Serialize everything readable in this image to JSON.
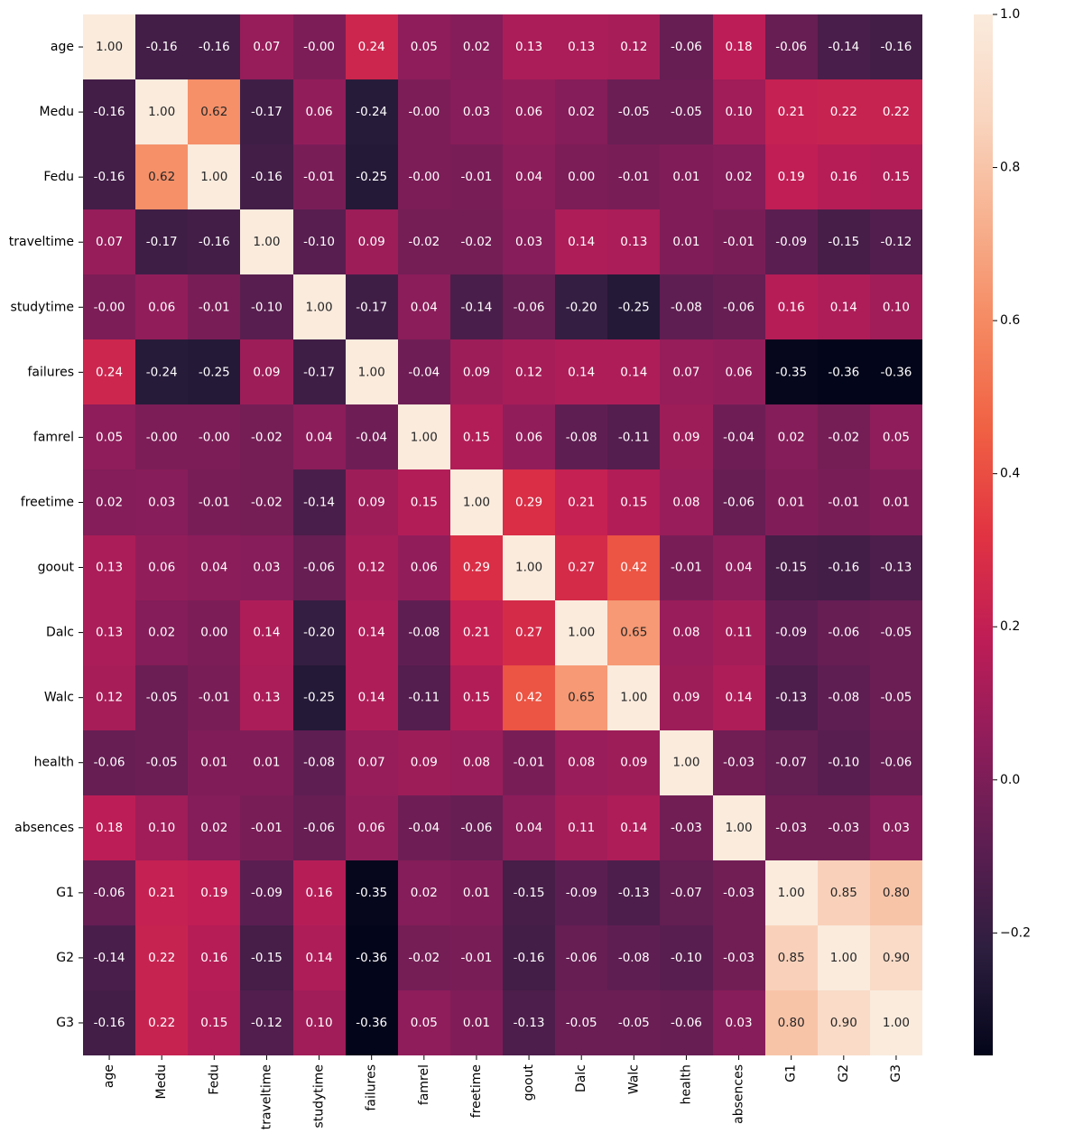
{
  "chart_data": {
    "type": "heatmap",
    "title": "",
    "xlabel": "",
    "ylabel": "",
    "labels": [
      "age",
      "Medu",
      "Fedu",
      "traveltime",
      "studytime",
      "failures",
      "famrel",
      "freetime",
      "goout",
      "Dalc",
      "Walc",
      "health",
      "absences",
      "G1",
      "G2",
      "G3"
    ],
    "values": [
      [
        1.0,
        -0.16,
        -0.16,
        0.07,
        -0.0,
        0.24,
        0.05,
        0.02,
        0.13,
        0.13,
        0.12,
        -0.06,
        0.18,
        -0.06,
        -0.14,
        -0.16
      ],
      [
        -0.16,
        1.0,
        0.62,
        -0.17,
        0.06,
        -0.24,
        -0.0,
        0.03,
        0.06,
        0.02,
        -0.05,
        -0.05,
        0.1,
        0.21,
        0.22,
        0.22
      ],
      [
        -0.16,
        0.62,
        1.0,
        -0.16,
        -0.01,
        -0.25,
        -0.0,
        -0.01,
        0.04,
        0.0,
        -0.01,
        0.01,
        0.02,
        0.19,
        0.16,
        0.15
      ],
      [
        0.07,
        -0.17,
        -0.16,
        1.0,
        -0.1,
        0.09,
        -0.02,
        -0.02,
        0.03,
        0.14,
        0.13,
        0.01,
        -0.01,
        -0.09,
        -0.15,
        -0.12
      ],
      [
        -0.0,
        0.06,
        -0.01,
        -0.1,
        1.0,
        -0.17,
        0.04,
        -0.14,
        -0.06,
        -0.2,
        -0.25,
        -0.08,
        -0.06,
        0.16,
        0.14,
        0.1
      ],
      [
        0.24,
        -0.24,
        -0.25,
        0.09,
        -0.17,
        1.0,
        -0.04,
        0.09,
        0.12,
        0.14,
        0.14,
        0.07,
        0.06,
        -0.35,
        -0.36,
        -0.36
      ],
      [
        0.05,
        -0.0,
        -0.0,
        -0.02,
        0.04,
        -0.04,
        1.0,
        0.15,
        0.06,
        -0.08,
        -0.11,
        0.09,
        -0.04,
        0.02,
        -0.02,
        0.05
      ],
      [
        0.02,
        0.03,
        -0.01,
        -0.02,
        -0.14,
        0.09,
        0.15,
        1.0,
        0.29,
        0.21,
        0.15,
        0.08,
        -0.06,
        0.01,
        -0.01,
        0.01
      ],
      [
        0.13,
        0.06,
        0.04,
        0.03,
        -0.06,
        0.12,
        0.06,
        0.29,
        1.0,
        0.27,
        0.42,
        -0.01,
        0.04,
        -0.15,
        -0.16,
        -0.13
      ],
      [
        0.13,
        0.02,
        0.0,
        0.14,
        -0.2,
        0.14,
        -0.08,
        0.21,
        0.27,
        1.0,
        0.65,
        0.08,
        0.11,
        -0.09,
        -0.06,
        -0.05
      ],
      [
        0.12,
        -0.05,
        -0.01,
        0.13,
        -0.25,
        0.14,
        -0.11,
        0.15,
        0.42,
        0.65,
        1.0,
        0.09,
        0.14,
        -0.13,
        -0.08,
        -0.05
      ],
      [
        -0.06,
        -0.05,
        0.01,
        0.01,
        -0.08,
        0.07,
        0.09,
        0.08,
        -0.01,
        0.08,
        0.09,
        1.0,
        -0.03,
        -0.07,
        -0.1,
        -0.06
      ],
      [
        0.18,
        0.1,
        0.02,
        -0.01,
        -0.06,
        0.06,
        -0.04,
        -0.06,
        0.04,
        0.11,
        0.14,
        -0.03,
        1.0,
        -0.03,
        -0.03,
        0.03
      ],
      [
        -0.06,
        0.21,
        0.19,
        -0.09,
        0.16,
        -0.35,
        0.02,
        0.01,
        -0.15,
        -0.09,
        -0.13,
        -0.07,
        -0.03,
        1.0,
        0.85,
        0.8
      ],
      [
        -0.14,
        0.22,
        0.16,
        -0.15,
        0.14,
        -0.36,
        -0.02,
        -0.01,
        -0.16,
        -0.06,
        -0.08,
        -0.1,
        -0.03,
        0.85,
        1.0,
        0.9
      ],
      [
        -0.16,
        0.22,
        0.15,
        -0.12,
        0.1,
        -0.36,
        0.05,
        0.01,
        -0.13,
        -0.05,
        -0.05,
        -0.06,
        0.03,
        0.8,
        0.9,
        1.0
      ]
    ],
    "color_scale": {
      "name": "rocket",
      "vmin": -0.36,
      "vmax": 1.0,
      "stops": [
        "#03051a",
        "#2c1e3e",
        "#5c1e51",
        "#8e1d5b",
        "#be1d56",
        "#e13342",
        "#f06043",
        "#f58860",
        "#f7b08e",
        "#f9d5bf",
        "#faebdd"
      ],
      "ticks": [
        -0.2,
        0.0,
        0.2,
        0.4,
        0.6,
        0.8,
        1.0
      ],
      "tick_labels": [
        "−0.2",
        "0.0",
        "0.2",
        "0.4",
        "0.6",
        "0.8",
        "1.0"
      ]
    },
    "annotations": true,
    "annotation_format": "2 decimals",
    "grid": false
  }
}
